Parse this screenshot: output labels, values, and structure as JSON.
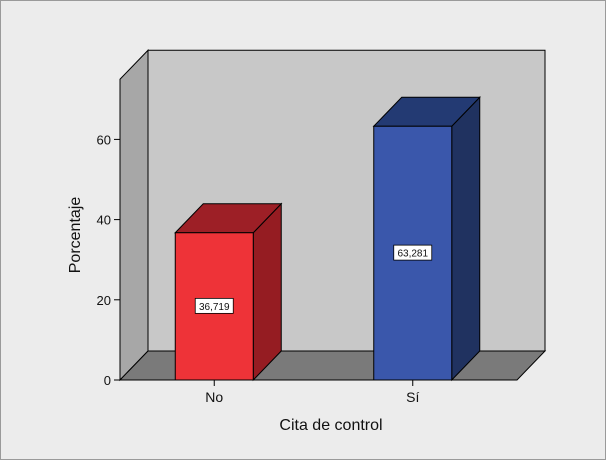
{
  "chart_data": {
    "type": "bar",
    "style": "3d",
    "categories": [
      "No",
      "Sí"
    ],
    "values": [
      36.719,
      63.281
    ],
    "value_labels": [
      "36,719",
      "63,281"
    ],
    "xlabel": "Cita de control",
    "ylabel": "Porcentaje",
    "ylim": [
      0,
      75
    ],
    "yticks": [
      0,
      20,
      40,
      60
    ],
    "ytick_labels": [
      "0",
      "20",
      "40",
      "60"
    ],
    "grid": false,
    "colors": {
      "bars": [
        {
          "front": "#ee3338",
          "side": "#951c22",
          "top": "#9d1f26"
        },
        {
          "front": "#3a57ab",
          "side": "#203260",
          "top": "#233a73"
        }
      ],
      "back_wall": "#c8c8c8",
      "side_wall": "#a7a7a7",
      "floor": "#7a7a7a"
    }
  }
}
